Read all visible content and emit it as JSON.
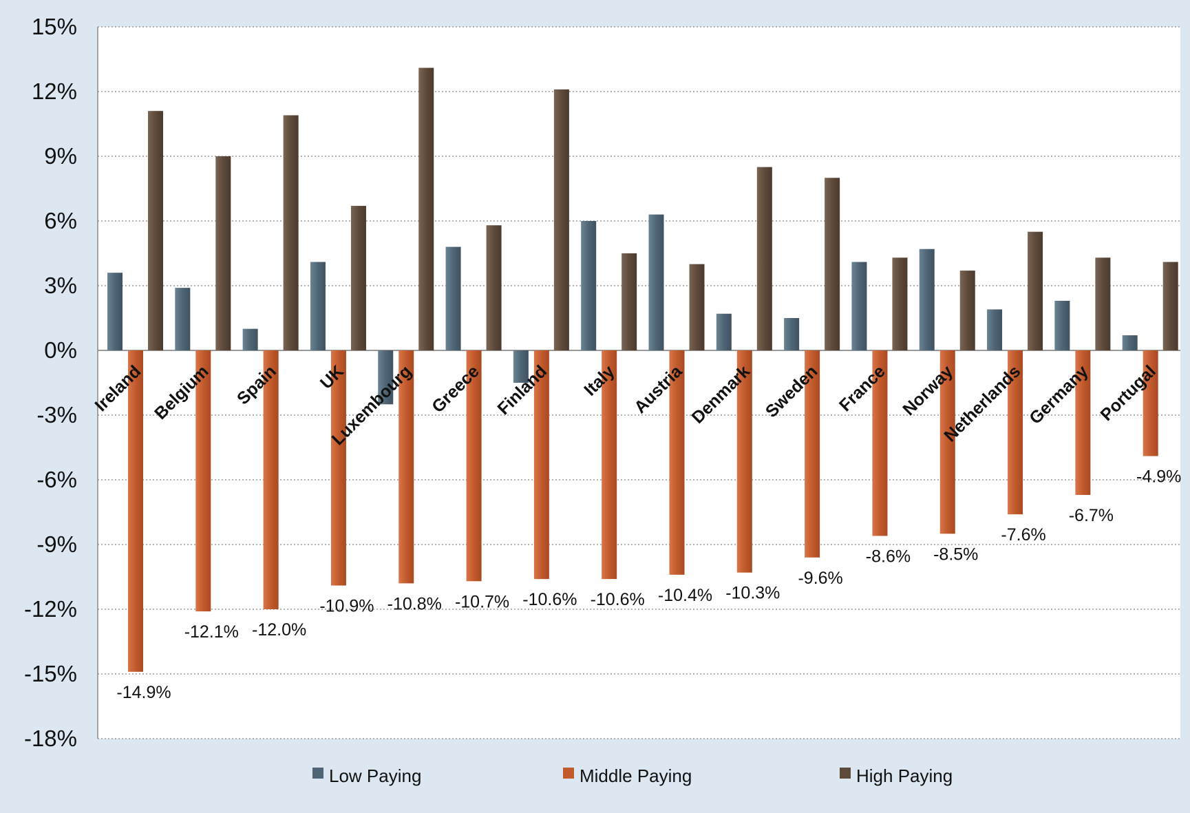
{
  "chart_data": {
    "type": "bar",
    "categories": [
      "Ireland",
      "Belgium",
      "Spain",
      "UK",
      "Luxembourg",
      "Greece",
      "Finland",
      "Italy",
      "Austria",
      "Denmark",
      "Sweden",
      "France",
      "Norway",
      "Netherlands",
      "Germany",
      "Portugal"
    ],
    "series": [
      {
        "name": "Low Paying",
        "color": "#4f6575",
        "values": [
          3.6,
          2.9,
          1.0,
          4.1,
          -2.5,
          4.8,
          -1.5,
          6.0,
          6.3,
          1.7,
          1.5,
          4.1,
          4.7,
          1.9,
          2.3,
          0.7
        ]
      },
      {
        "name": "Middle Paying",
        "color": "#c25a2c",
        "values": [
          -14.9,
          -12.1,
          -12.0,
          -10.9,
          -10.8,
          -10.7,
          -10.6,
          -10.6,
          -10.4,
          -10.3,
          -9.6,
          -8.6,
          -8.5,
          -7.6,
          -6.7,
          -4.9
        ],
        "data_labels": [
          "-14.9%",
          "-12.1%",
          "-12.0%",
          "-10.9%",
          "-10.8%",
          "-10.7%",
          "-10.6%",
          "-10.6%",
          "-10.4%",
          "-10.3%",
          "-9.6%",
          "-8.6%",
          "-8.5%",
          "-7.6%",
          "-6.7%",
          "-4.9%"
        ]
      },
      {
        "name": "High Paying",
        "color": "#5e4a3b",
        "values": [
          11.1,
          9.0,
          10.9,
          6.7,
          13.1,
          5.8,
          12.1,
          4.5,
          4.0,
          8.5,
          8.0,
          4.3,
          3.7,
          5.5,
          4.3,
          4.1
        ]
      }
    ],
    "y_ticks": [
      "15%",
      "12%",
      "9%",
      "6%",
      "3%",
      "0%",
      "-3%",
      "-6%",
      "-9%",
      "-12%",
      "-15%",
      "-18%"
    ],
    "ylim": [
      -18,
      15
    ],
    "y_step": 3,
    "grid": true,
    "legend": "bottom",
    "title": "",
    "xlabel": "",
    "ylabel": ""
  }
}
